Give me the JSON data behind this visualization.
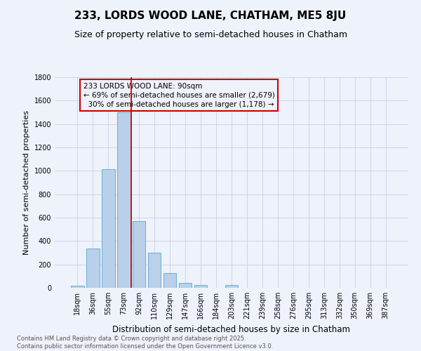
{
  "title": "233, LORDS WOOD LANE, CHATHAM, ME5 8JU",
  "subtitle": "Size of property relative to semi-detached houses in Chatham",
  "xlabel": "Distribution of semi-detached houses by size in Chatham",
  "ylabel": "Number of semi-detached properties",
  "categories": [
    "18sqm",
    "36sqm",
    "55sqm",
    "73sqm",
    "92sqm",
    "110sqm",
    "129sqm",
    "147sqm",
    "166sqm",
    "184sqm",
    "203sqm",
    "221sqm",
    "239sqm",
    "258sqm",
    "276sqm",
    "295sqm",
    "313sqm",
    "332sqm",
    "350sqm",
    "369sqm",
    "387sqm"
  ],
  "values": [
    20,
    335,
    1015,
    1500,
    570,
    300,
    125,
    45,
    25,
    0,
    22,
    0,
    0,
    0,
    0,
    0,
    0,
    0,
    0,
    0,
    0
  ],
  "bar_color": "#b8d0ea",
  "bar_edge_color": "#6aaed6",
  "background_color": "#eef2fb",
  "grid_color": "#c8d0e0",
  "vline_color": "#cc0000",
  "vline_x_index": 4,
  "annotation_line1": "233 LORDS WOOD LANE: 90sqm",
  "annotation_line2": "← 69% of semi-detached houses are smaller (2,679)",
  "annotation_line3": "  30% of semi-detached houses are larger (1,178) →",
  "annotation_box_edge_color": "#cc0000",
  "ylim": [
    0,
    1800
  ],
  "yticks": [
    0,
    200,
    400,
    600,
    800,
    1000,
    1200,
    1400,
    1600,
    1800
  ],
  "footer": "Contains HM Land Registry data © Crown copyright and database right 2025.\nContains public sector information licensed under the Open Government Licence v3.0.",
  "title_fontsize": 11,
  "subtitle_fontsize": 9,
  "ylabel_fontsize": 8,
  "xlabel_fontsize": 8.5,
  "tick_fontsize": 7,
  "footer_fontsize": 6,
  "annotation_fontsize": 7.5
}
